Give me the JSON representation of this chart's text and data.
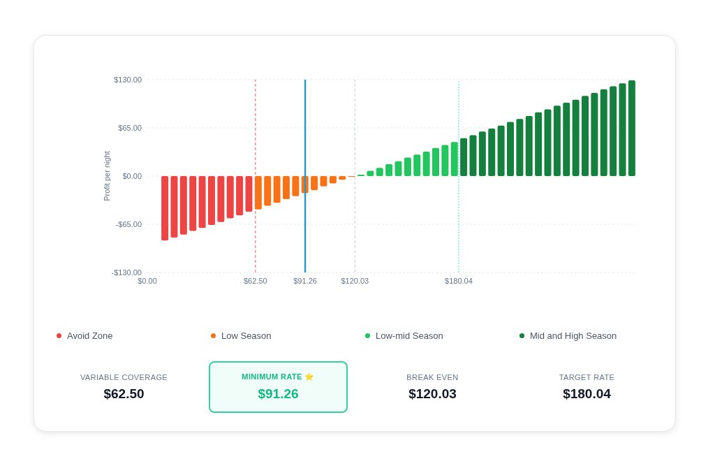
{
  "chart_data": {
    "type": "bar",
    "ylabel": "Profit per night",
    "series": [
      {
        "name": "Avoid Zone",
        "color": "#ef4444",
        "x": [
          10,
          15.4,
          20.8,
          26.2,
          31.6,
          37,
          42.4,
          47.8,
          53.2,
          58.6
        ],
        "values": [
          -87,
          -83,
          -79,
          -74,
          -70,
          -66,
          -62,
          -57,
          -53,
          -48
        ]
      },
      {
        "name": "Low Season",
        "color": "#f97316",
        "x": [
          64,
          69.4,
          74.8,
          80.2,
          85.6,
          91,
          96.4,
          101.8,
          107.2,
          112.6,
          118
        ],
        "values": [
          -45,
          -40,
          -36,
          -31,
          -27,
          -23,
          -19,
          -14,
          -10,
          -5,
          -1
        ]
      },
      {
        "name": "Low-mid Season",
        "color": "#22c55e",
        "x": [
          123.4,
          128.8,
          134.2,
          139.6,
          145,
          150.4,
          155.8,
          161.2,
          166.6,
          172,
          177.4
        ],
        "values": [
          2,
          7,
          11,
          16,
          20,
          25,
          29,
          33,
          38,
          42,
          46
        ]
      },
      {
        "name": "Mid and High Season",
        "color": "#15803d",
        "x": [
          182.8,
          188.2,
          193.6,
          199,
          204.4,
          209.8,
          215.2,
          220.6,
          226,
          231.4,
          236.8,
          242.2,
          247.6,
          253,
          258.4,
          263.8,
          269.2,
          274.6,
          280
        ],
        "values": [
          51,
          55,
          60,
          64,
          68,
          73,
          77,
          81,
          86,
          90,
          95,
          99,
          103,
          108,
          112,
          117,
          121,
          125,
          129
        ]
      }
    ],
    "xlim": [
      0,
      283
    ],
    "xticks": [
      {
        "value": 0,
        "label": "$0.00"
      },
      {
        "value": 62.5,
        "label": "$62.50"
      },
      {
        "value": 91.26,
        "label": "$91.26"
      },
      {
        "value": 120.03,
        "label": "$120.03"
      },
      {
        "value": 180.04,
        "label": "$180.04"
      }
    ],
    "ylim": [
      -130,
      130
    ],
    "yticks": [
      {
        "value": -130,
        "label": "-$130.00"
      },
      {
        "value": -65,
        "label": "-$65.00"
      },
      {
        "value": 0,
        "label": "$0.00"
      },
      {
        "value": 65,
        "label": "$65.00"
      },
      {
        "value": 130,
        "label": "$130.00"
      }
    ],
    "grid": "y",
    "legend": "bottom",
    "ref_lines": [
      {
        "axis": "x",
        "value": 62.5,
        "color": "#f87171",
        "line_style": "dashed"
      },
      {
        "axis": "x",
        "value": 91.26,
        "color": "#2e9ac4",
        "line_style": "solid"
      },
      {
        "axis": "x",
        "value": 120.03,
        "color": "#cbd5e1",
        "line_style": "dashed"
      },
      {
        "axis": "x",
        "value": 180.04,
        "color": "#5eead4",
        "line_style": "dotted"
      }
    ],
    "annotations": [
      "VARIABLE COVERAGE",
      "MINIMUM RATE ⭐",
      "BREAK EVEN",
      "TARGET RATE"
    ]
  }
}
